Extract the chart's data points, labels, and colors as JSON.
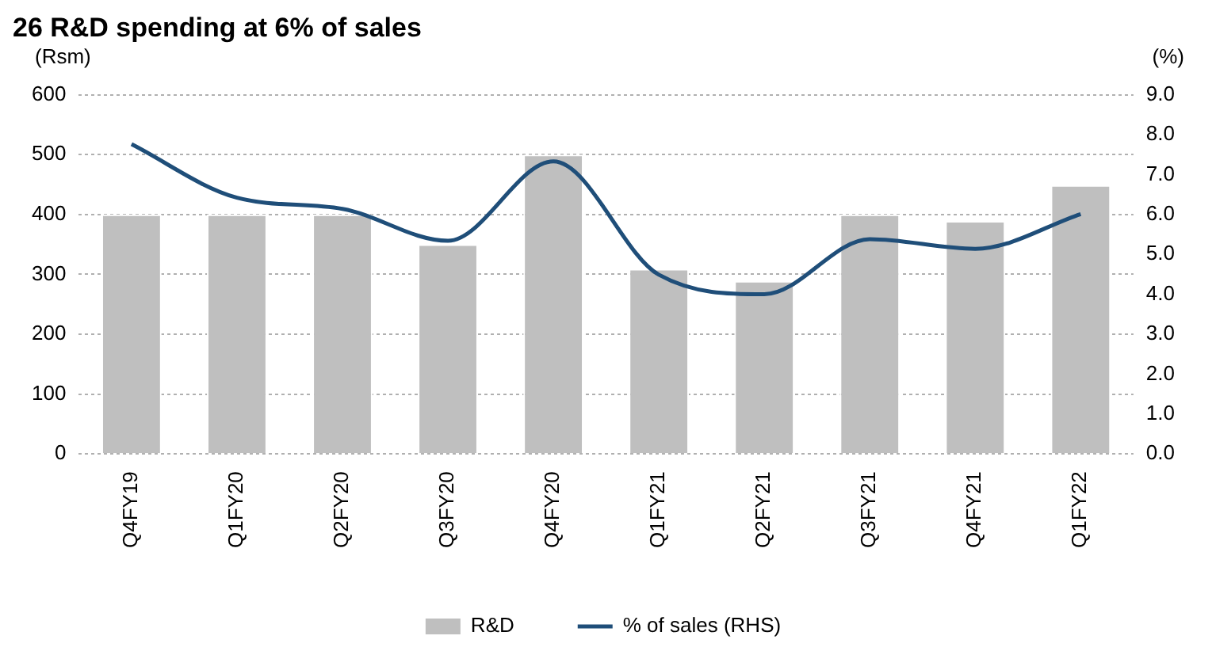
{
  "chart_data": {
    "type": "bar",
    "title": "26 R&D spending at 6% of sales",
    "ylabel": "(Rsm)",
    "y2label": "(%)",
    "categories": [
      "Q4FY19",
      "Q1FY20",
      "Q2FY20",
      "Q3FY20",
      "Q4FY20",
      "Q1FY21",
      "Q2FY21",
      "Q3FY21",
      "Q4FY21",
      "Q1FY22"
    ],
    "series": [
      {
        "name": "R&D",
        "color": "#bfbfbf",
        "values": [
          400,
          400,
          400,
          350,
          500,
          309,
          289,
          400,
          389,
          449
        ]
      },
      {
        "name": "% of sales (RHS)",
        "type": "line",
        "axis": "y2",
        "color": "#1f4e79",
        "values": [
          7.76,
          6.42,
          6.14,
          5.34,
          7.33,
          4.49,
          4.0,
          5.38,
          5.14,
          6.01
        ]
      }
    ],
    "ylim": [
      0,
      600
    ],
    "yticks": [
      0,
      100,
      200,
      300,
      400,
      500,
      600
    ],
    "y2lim": [
      0,
      9
    ],
    "y2ticks": [
      {
        "value": 0,
        "label": "0.0"
      },
      {
        "value": 1,
        "label": "1.0"
      },
      {
        "value": 2,
        "label": "2.0"
      },
      {
        "value": 3,
        "label": "3.0"
      },
      {
        "value": 4,
        "label": "4.0"
      },
      {
        "value": 5,
        "label": "5.0"
      },
      {
        "value": 6,
        "label": "6.0"
      },
      {
        "value": 7,
        "label": "7.0"
      },
      {
        "value": 8,
        "label": "8.0"
      },
      {
        "value": 9,
        "label": "9.0"
      }
    ],
    "grid": "y",
    "legend": "bottom",
    "marker": "none",
    "line_style": "solid"
  }
}
